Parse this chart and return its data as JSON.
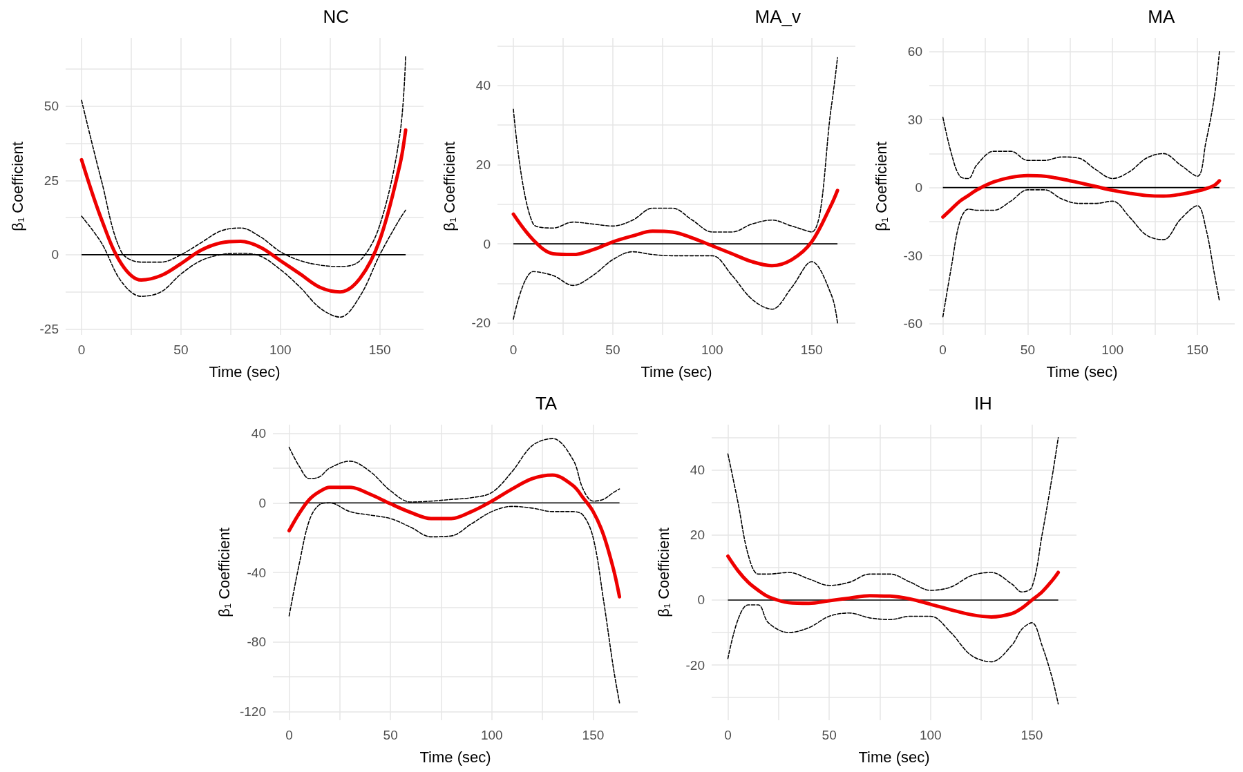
{
  "chart_data": [
    {
      "type": "line",
      "title": "NC",
      "xlabel": "Time (sec)",
      "ylabel": "β$_{1}$ Coefficient",
      "grid": true,
      "xlim": [
        -8,
        172
      ],
      "ylim": [
        -27,
        73
      ],
      "xticks": [
        0,
        {
          "value": 25,
          "label": null
        },
        50,
        {
          "value": 75,
          "label": null
        },
        100,
        {
          "value": 125,
          "label": null
        },
        150
      ],
      "yticks": [
        -25,
        {
          "value": -12.5,
          "label": null
        },
        0,
        {
          "value": 12.5,
          "label": null
        },
        25,
        {
          "value": 37.5,
          "label": null
        },
        50,
        {
          "value": 62.5,
          "label": null
        }
      ],
      "ref_lines": [
        {
          "axis": "y",
          "value": 0,
          "color": "#000000"
        }
      ],
      "x": [
        0,
        10,
        20,
        30,
        40,
        50,
        60,
        70,
        80,
        90,
        100,
        110,
        120,
        130,
        140,
        150,
        160,
        163
      ],
      "series": [
        {
          "color": "#ee0000",
          "line_style": "solid",
          "values": [
            32,
            12,
            -3,
            -8.5,
            -7,
            -3,
            1.5,
            4,
            4.5,
            2.5,
            -2,
            -6.5,
            -11,
            -12.5,
            -8,
            5,
            30,
            42
          ]
        },
        {
          "color": "#000000",
          "line_style": "dashed",
          "values": [
            52,
            25,
            1,
            -2.5,
            -2.5,
            0,
            4,
            8,
            9,
            6,
            1,
            -2,
            -3.5,
            -4,
            -2,
            10,
            40,
            67
          ]
        },
        {
          "color": "#000000",
          "line_style": "dashed",
          "values": [
            13,
            4,
            -9,
            -14,
            -12.5,
            -6.5,
            -2,
            0,
            0.5,
            -0.5,
            -5,
            -11,
            -18,
            -21,
            -14,
            0,
            12,
            15
          ]
        }
      ]
    },
    {
      "type": "line",
      "title": "MA_v",
      "xlabel": "Time (sec)",
      "ylabel": "β$_{1}$ Coefficient",
      "grid": true,
      "xlim": [
        -8,
        172
      ],
      "ylim": [
        -23,
        52
      ],
      "xticks": [
        0,
        {
          "value": 25,
          "label": null
        },
        50,
        {
          "value": 75,
          "label": null
        },
        100,
        {
          "value": 125,
          "label": null
        },
        150
      ],
      "yticks": [
        -20,
        {
          "value": -10,
          "label": null
        },
        0,
        {
          "value": 10,
          "label": null
        },
        20,
        {
          "value": 30,
          "label": null
        },
        40,
        {
          "value": 50,
          "label": null
        }
      ],
      "ref_lines": [
        {
          "axis": "y",
          "value": 0,
          "color": "#000000"
        }
      ],
      "x": [
        0,
        10,
        20,
        30,
        40,
        50,
        60,
        70,
        80,
        90,
        100,
        110,
        120,
        130,
        140,
        150,
        160,
        163
      ],
      "series": [
        {
          "color": "#ee0000",
          "line_style": "solid",
          "values": [
            7.5,
            1,
            -2.5,
            -2.7,
            -1.5,
            0.5,
            2,
            3.2,
            3,
            1.5,
            -0.5,
            -2.5,
            -4.5,
            -5.5,
            -4,
            0.5,
            10,
            13.5
          ]
        },
        {
          "color": "#000000",
          "line_style": "dashed",
          "values": [
            34,
            5,
            4,
            5.5,
            5,
            4.5,
            6,
            9,
            9,
            6,
            3,
            3,
            5,
            6,
            4.5,
            3,
            35,
            47
          ]
        },
        {
          "color": "#000000",
          "line_style": "dashed",
          "values": [
            -19,
            -7,
            -8,
            -10.5,
            -8,
            -4,
            -2,
            -2.7,
            -3,
            -3,
            -3,
            -8,
            -14,
            -16.5,
            -11,
            -4.5,
            -13,
            -20
          ]
        }
      ]
    },
    {
      "type": "line",
      "title": "MA",
      "xlabel": "Time (sec)",
      "ylabel": "β$_{1}$ Coefficient",
      "grid": true,
      "xlim": [
        -8,
        172
      ],
      "ylim": [
        -65,
        66
      ],
      "xticks": [
        0,
        {
          "value": 25,
          "label": null
        },
        50,
        {
          "value": 75,
          "label": null
        },
        100,
        {
          "value": 125,
          "label": null
        },
        150
      ],
      "yticks": [
        -60,
        {
          "value": -45,
          "label": null
        },
        -30,
        {
          "value": -15,
          "label": null
        },
        0,
        {
          "value": 15,
          "label": null
        },
        30,
        {
          "value": 45,
          "label": null
        },
        60
      ],
      "ref_lines": [
        {
          "axis": "y",
          "value": 0,
          "color": "#000000"
        }
      ],
      "x": [
        0,
        5,
        10,
        15,
        20,
        30,
        40,
        50,
        60,
        70,
        80,
        90,
        100,
        110,
        120,
        130,
        140,
        150,
        155,
        160,
        163
      ],
      "series": [
        {
          "color": "#ee0000",
          "line_style": "solid",
          "values": [
            -13,
            -9.5,
            -6,
            -3.5,
            -1,
            2.5,
            4.5,
            5.3,
            5,
            3.8,
            2.2,
            0.5,
            -1.2,
            -2.5,
            -3.5,
            -3.8,
            -3,
            -1.5,
            -0.5,
            1,
            3
          ]
        },
        {
          "color": "#000000",
          "line_style": "dashed",
          "values": [
            31,
            15,
            5,
            4,
            10,
            16,
            16,
            12,
            12,
            13.5,
            13,
            8,
            4,
            7,
            13,
            15,
            10,
            5,
            20,
            40,
            60
          ]
        },
        {
          "color": "#000000",
          "line_style": "dashed",
          "values": [
            -57,
            -35,
            -15,
            -9.5,
            -10,
            -10,
            -6,
            -1,
            -1,
            -5,
            -7,
            -7,
            -6,
            -13,
            -21,
            -23,
            -14,
            -8,
            -18,
            -38,
            -50
          ]
        }
      ]
    },
    {
      "type": "line",
      "title": "TA",
      "xlabel": "Time (sec)",
      "ylabel": "β$_{1}$ Coefficient",
      "grid": true,
      "xlim": [
        -8,
        172
      ],
      "ylim": [
        -125,
        45
      ],
      "xticks": [
        0,
        {
          "value": 25,
          "label": null
        },
        50,
        {
          "value": 75,
          "label": null
        },
        100,
        {
          "value": 125,
          "label": null
        },
        150
      ],
      "yticks": [
        -120,
        {
          "value": -100,
          "label": null
        },
        -80,
        {
          "value": -60,
          "label": null
        },
        -40,
        {
          "value": -20,
          "label": null
        },
        0,
        {
          "value": 20,
          "label": null
        },
        40
      ],
      "ref_lines": [
        {
          "axis": "y",
          "value": 0,
          "color": "#000000"
        }
      ],
      "x": [
        0,
        5,
        10,
        15,
        20,
        30,
        40,
        50,
        60,
        70,
        80,
        90,
        100,
        110,
        120,
        130,
        140,
        145,
        150,
        155,
        160,
        163
      ],
      "series": [
        {
          "color": "#ee0000",
          "line_style": "solid",
          "values": [
            -16,
            -6,
            2,
            6.5,
            9,
            9,
            5,
            -0.5,
            -5.5,
            -9,
            -9,
            -5,
            1,
            8,
            14,
            16,
            10,
            3,
            -5,
            -18,
            -38,
            -54
          ]
        },
        {
          "color": "#000000",
          "line_style": "dashed",
          "values": [
            32,
            21,
            14,
            15,
            20,
            24,
            18,
            7,
            0.5,
            1,
            2,
            3,
            6,
            18,
            33,
            37,
            25,
            8,
            1,
            2,
            6,
            8
          ]
        },
        {
          "color": "#000000",
          "line_style": "dashed",
          "values": [
            -65,
            -35,
            -10,
            -1,
            0,
            -5,
            -7,
            -9,
            -14,
            -19.5,
            -19,
            -12,
            -5,
            -2,
            -3,
            -5,
            -5,
            -7,
            -20,
            -55,
            -95,
            -115
          ]
        }
      ]
    },
    {
      "type": "line",
      "title": "IH",
      "xlabel": "Time (sec)",
      "ylabel": "β$_{1}$ Coefficient",
      "grid": true,
      "xlim": [
        -8,
        172
      ],
      "ylim": [
        -37,
        54
      ],
      "xticks": [
        0,
        {
          "value": 25,
          "label": null
        },
        50,
        {
          "value": 75,
          "label": null
        },
        100,
        {
          "value": 125,
          "label": null
        },
        150
      ],
      "yticks": [
        {
          "value": -30,
          "label": null
        },
        -20,
        {
          "value": -10,
          "label": null
        },
        0,
        {
          "value": 10,
          "label": null
        },
        20,
        {
          "value": 30,
          "label": null
        },
        40,
        {
          "value": 50,
          "label": null
        }
      ],
      "ref_lines": [
        {
          "axis": "y",
          "value": 0,
          "color": "#000000"
        }
      ],
      "x": [
        0,
        5,
        10,
        15,
        20,
        30,
        40,
        50,
        60,
        70,
        80,
        90,
        100,
        110,
        120,
        130,
        140,
        145,
        150,
        155,
        160,
        163
      ],
      "series": [
        {
          "color": "#ee0000",
          "line_style": "solid",
          "values": [
            13.5,
            9,
            5.5,
            3,
            1,
            -0.8,
            -1,
            -0.2,
            0.6,
            1.3,
            1.2,
            0.3,
            -1.3,
            -3,
            -4.5,
            -5.2,
            -4.2,
            -2.5,
            0,
            2.5,
            6,
            8.5
          ]
        },
        {
          "color": "#000000",
          "line_style": "dashed",
          "values": [
            45,
            30,
            14,
            8,
            8,
            8.5,
            6.5,
            4.5,
            5.5,
            8,
            8,
            5.5,
            3,
            4,
            7.5,
            8.5,
            5,
            2.5,
            4,
            20,
            38,
            50
          ]
        },
        {
          "color": "#000000",
          "line_style": "dashed",
          "values": [
            -18,
            -6,
            -1.5,
            -1.5,
            -7,
            -10,
            -8.5,
            -5,
            -4,
            -5.5,
            -6,
            -5,
            -5,
            -10,
            -17,
            -19,
            -14,
            -9,
            -7,
            -14,
            -24,
            -32
          ]
        }
      ]
    }
  ]
}
